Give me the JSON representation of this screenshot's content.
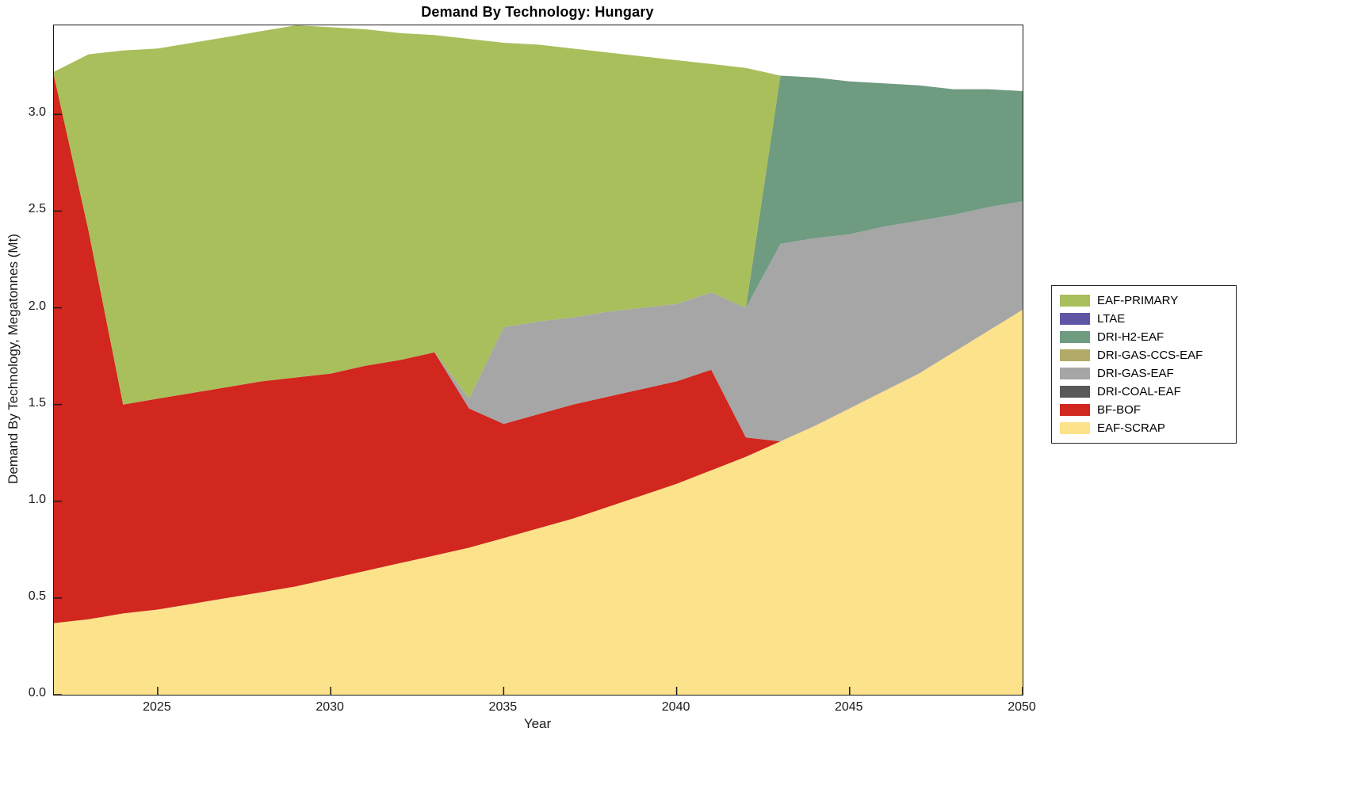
{
  "chart_data": {
    "type": "area",
    "stacked": true,
    "title": "Demand By Technology: Hungary",
    "xlabel": "Year",
    "ylabel": "Demand By Technology, Megatonnes (Mt)",
    "xlim": [
      2022,
      2050
    ],
    "ylim": [
      0,
      3.46
    ],
    "xticks": [
      2025,
      2030,
      2035,
      2040,
      2045,
      2050
    ],
    "yticks": [
      0.0,
      0.5,
      1.0,
      1.5,
      2.0,
      2.5,
      3.0
    ],
    "ytick_labels": [
      "0.0",
      "0.5",
      "1.0",
      "1.5",
      "2.0",
      "2.5",
      "3.0"
    ],
    "grid": false,
    "legend_position": "outside-right",
    "legend_order": "top-of-stack-first",
    "x": [
      2022,
      2023,
      2024,
      2025,
      2026,
      2027,
      2028,
      2029,
      2030,
      2031,
      2032,
      2033,
      2034,
      2035,
      2036,
      2037,
      2038,
      2039,
      2040,
      2041,
      2042,
      2043,
      2044,
      2045,
      2046,
      2047,
      2048,
      2049,
      2050
    ],
    "series": [
      {
        "name": "EAF-SCRAP",
        "color": "#fbe28b",
        "values": [
          0.37,
          0.39,
          0.42,
          0.44,
          0.47,
          0.5,
          0.53,
          0.56,
          0.6,
          0.64,
          0.68,
          0.72,
          0.76,
          0.81,
          0.86,
          0.91,
          0.97,
          1.03,
          1.09,
          1.16,
          1.23,
          1.31,
          1.39,
          1.48,
          1.57,
          1.66,
          1.77,
          1.88,
          1.99
        ]
      },
      {
        "name": "BF-BOF",
        "color": "#d1271e",
        "values": [
          2.83,
          2.01,
          1.08,
          1.09,
          1.09,
          1.09,
          1.09,
          1.08,
          1.06,
          1.06,
          1.05,
          1.05,
          0.72,
          0.59,
          0.59,
          0.59,
          0.57,
          0.55,
          0.53,
          0.52,
          0.1,
          0,
          0,
          0,
          0,
          0,
          0,
          0,
          0
        ]
      },
      {
        "name": "DRI-COAL-EAF",
        "color": "#595959",
        "values": [
          0,
          0,
          0,
          0,
          0,
          0,
          0,
          0,
          0,
          0,
          0,
          0,
          0,
          0,
          0,
          0,
          0,
          0,
          0,
          0,
          0,
          0,
          0,
          0,
          0,
          0,
          0,
          0,
          0
        ]
      },
      {
        "name": "DRI-GAS-EAF",
        "color": "#a6a6a6",
        "values": [
          0,
          0,
          0,
          0,
          0,
          0,
          0,
          0,
          0,
          0,
          0,
          0,
          0.05,
          0.5,
          0.48,
          0.45,
          0.44,
          0.42,
          0.4,
          0.4,
          0.67,
          1.02,
          0.97,
          0.9,
          0.85,
          0.79,
          0.71,
          0.64,
          0.56
        ]
      },
      {
        "name": "DRI-GAS-CCS-EAF",
        "color": "#b2ab67",
        "values": [
          0,
          0,
          0,
          0,
          0,
          0,
          0,
          0,
          0,
          0,
          0,
          0,
          0,
          0,
          0,
          0,
          0,
          0,
          0,
          0,
          0,
          0,
          0,
          0,
          0,
          0,
          0,
          0,
          0
        ]
      },
      {
        "name": "DRI-H2-EAF",
        "color": "#6f9b80",
        "values": [
          0,
          0,
          0,
          0,
          0,
          0,
          0,
          0,
          0,
          0,
          0,
          0,
          0,
          0,
          0,
          0,
          0,
          0,
          0,
          0,
          0,
          0.87,
          0.83,
          0.79,
          0.74,
          0.7,
          0.65,
          0.61,
          0.57
        ]
      },
      {
        "name": "LTAE",
        "color": "#5f57a6",
        "values": [
          0,
          0,
          0,
          0,
          0,
          0,
          0,
          0,
          0,
          0,
          0,
          0,
          0,
          0,
          0,
          0,
          0,
          0,
          0,
          0,
          0,
          0,
          0,
          0,
          0,
          0,
          0,
          0,
          0
        ]
      },
      {
        "name": "EAF-PRIMARY",
        "color": "#a9bf5c",
        "values": [
          0.02,
          0.91,
          1.83,
          1.81,
          1.81,
          1.81,
          1.81,
          1.82,
          1.79,
          1.74,
          1.69,
          1.64,
          1.86,
          1.47,
          1.43,
          1.39,
          1.34,
          1.3,
          1.26,
          1.18,
          1.24,
          0,
          0,
          0,
          0,
          0,
          0,
          0,
          0
        ]
      }
    ],
    "axis_color": "#1a1a1a"
  }
}
